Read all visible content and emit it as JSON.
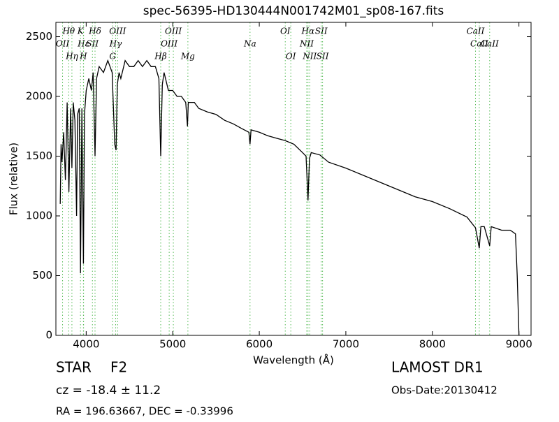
{
  "chart_data": {
    "type": "line",
    "title": "spec-56395-HD130444N001742M01_sp08-167.fits",
    "x_label": "Wavelength (Å)",
    "y_label": "Flux (relative)",
    "xlim": [
      3650,
      9140
    ],
    "ylim": [
      0,
      2620
    ],
    "xticks": [
      4000,
      5000,
      6000,
      7000,
      8000,
      9000
    ],
    "yticks": [
      0,
      500,
      1000,
      1500,
      2000,
      2500
    ],
    "series": [
      {
        "color": "#000000",
        "x": [
          3700,
          3710,
          3720,
          3740,
          3760,
          3780,
          3800,
          3820,
          3835,
          3850,
          3870,
          3889,
          3900,
          3920,
          3934,
          3950,
          3968,
          3980,
          4000,
          4030,
          4060,
          4080,
          4102,
          4120,
          4150,
          4200,
          4250,
          4300,
          4330,
          4345,
          4360,
          4380,
          4400,
          4450,
          4500,
          4550,
          4600,
          4650,
          4700,
          4750,
          4800,
          4840,
          4861,
          4880,
          4900,
          4950,
          5000,
          5050,
          5100,
          5150,
          5170,
          5180,
          5250,
          5300,
          5400,
          5500,
          5600,
          5700,
          5800,
          5880,
          5893,
          5905,
          6000,
          6100,
          6200,
          6300,
          6400,
          6500,
          6540,
          6563,
          6580,
          6600,
          6700,
          6800,
          7000,
          7200,
          7400,
          7600,
          7800,
          8000,
          8200,
          8400,
          8498,
          8542,
          8560,
          8600,
          8662,
          8680,
          8800,
          8900,
          8960,
          8980,
          9000
        ],
        "values": [
          1100,
          1600,
          1450,
          1700,
          1300,
          1950,
          1200,
          1900,
          1400,
          1950,
          1800,
          1000,
          1850,
          1900,
          520,
          1900,
          600,
          1850,
          2050,
          2150,
          2050,
          2200,
          1500,
          2150,
          2250,
          2200,
          2300,
          2200,
          1600,
          1550,
          2100,
          2200,
          2150,
          2300,
          2250,
          2250,
          2300,
          2250,
          2300,
          2250,
          2250,
          2150,
          1500,
          2100,
          2200,
          2050,
          2050,
          2000,
          2000,
          1950,
          1750,
          1950,
          1950,
          1900,
          1870,
          1850,
          1800,
          1770,
          1730,
          1700,
          1600,
          1720,
          1700,
          1670,
          1650,
          1630,
          1600,
          1530,
          1500,
          1130,
          1480,
          1530,
          1510,
          1450,
          1400,
          1340,
          1280,
          1220,
          1160,
          1120,
          1060,
          990,
          900,
          730,
          910,
          910,
          750,
          910,
          880,
          880,
          850,
          500,
          0
        ]
      }
    ],
    "line_color": "#55bb55",
    "lines": [
      {
        "label": "Hθ",
        "x": 3798
      },
      {
        "label": "OII",
        "x": 3727
      },
      {
        "label": "Hη",
        "x": 3835
      },
      {
        "label": "K",
        "x": 3934
      },
      {
        "label": "Hε",
        "x": 3970
      },
      {
        "label": "H",
        "x": 3968
      },
      {
        "label": "Hδ",
        "x": 4102
      },
      {
        "label": "SII",
        "x": 4072
      },
      {
        "label": "G",
        "x": 4305
      },
      {
        "label": "OIII",
        "x": 4363
      },
      {
        "label": "Hγ",
        "x": 4340
      },
      {
        "label": "Hβ",
        "x": 4861
      },
      {
        "label": "OIII",
        "x": 5007
      },
      {
        "label": "OIII",
        "x": 4959
      },
      {
        "label": "Mg",
        "x": 5175
      },
      {
        "label": "OI",
        "x": 6300
      },
      {
        "label": "Na",
        "x": 5893
      },
      {
        "label": "OI",
        "x": 6364
      },
      {
        "label": "Hα",
        "x": 6563
      },
      {
        "label": "NII",
        "x": 6548
      },
      {
        "label": "NII",
        "x": 6583
      },
      {
        "label": "SII",
        "x": 6716
      },
      {
        "label": "CaII",
        "x": 8542
      },
      {
        "label": "SII",
        "x": 6731
      },
      {
        "label": "CaII",
        "x": 8498
      },
      {
        "label": "CaII",
        "x": 8662
      }
    ],
    "info": {
      "class": "STAR",
      "subclass": "F2",
      "cz": "cz = -18.4 ± 11.2",
      "coords": "RA = 196.63667, DEC = -0.33996",
      "survey": "LAMOST DR1",
      "date": "Obs-Date:20130412"
    }
  }
}
